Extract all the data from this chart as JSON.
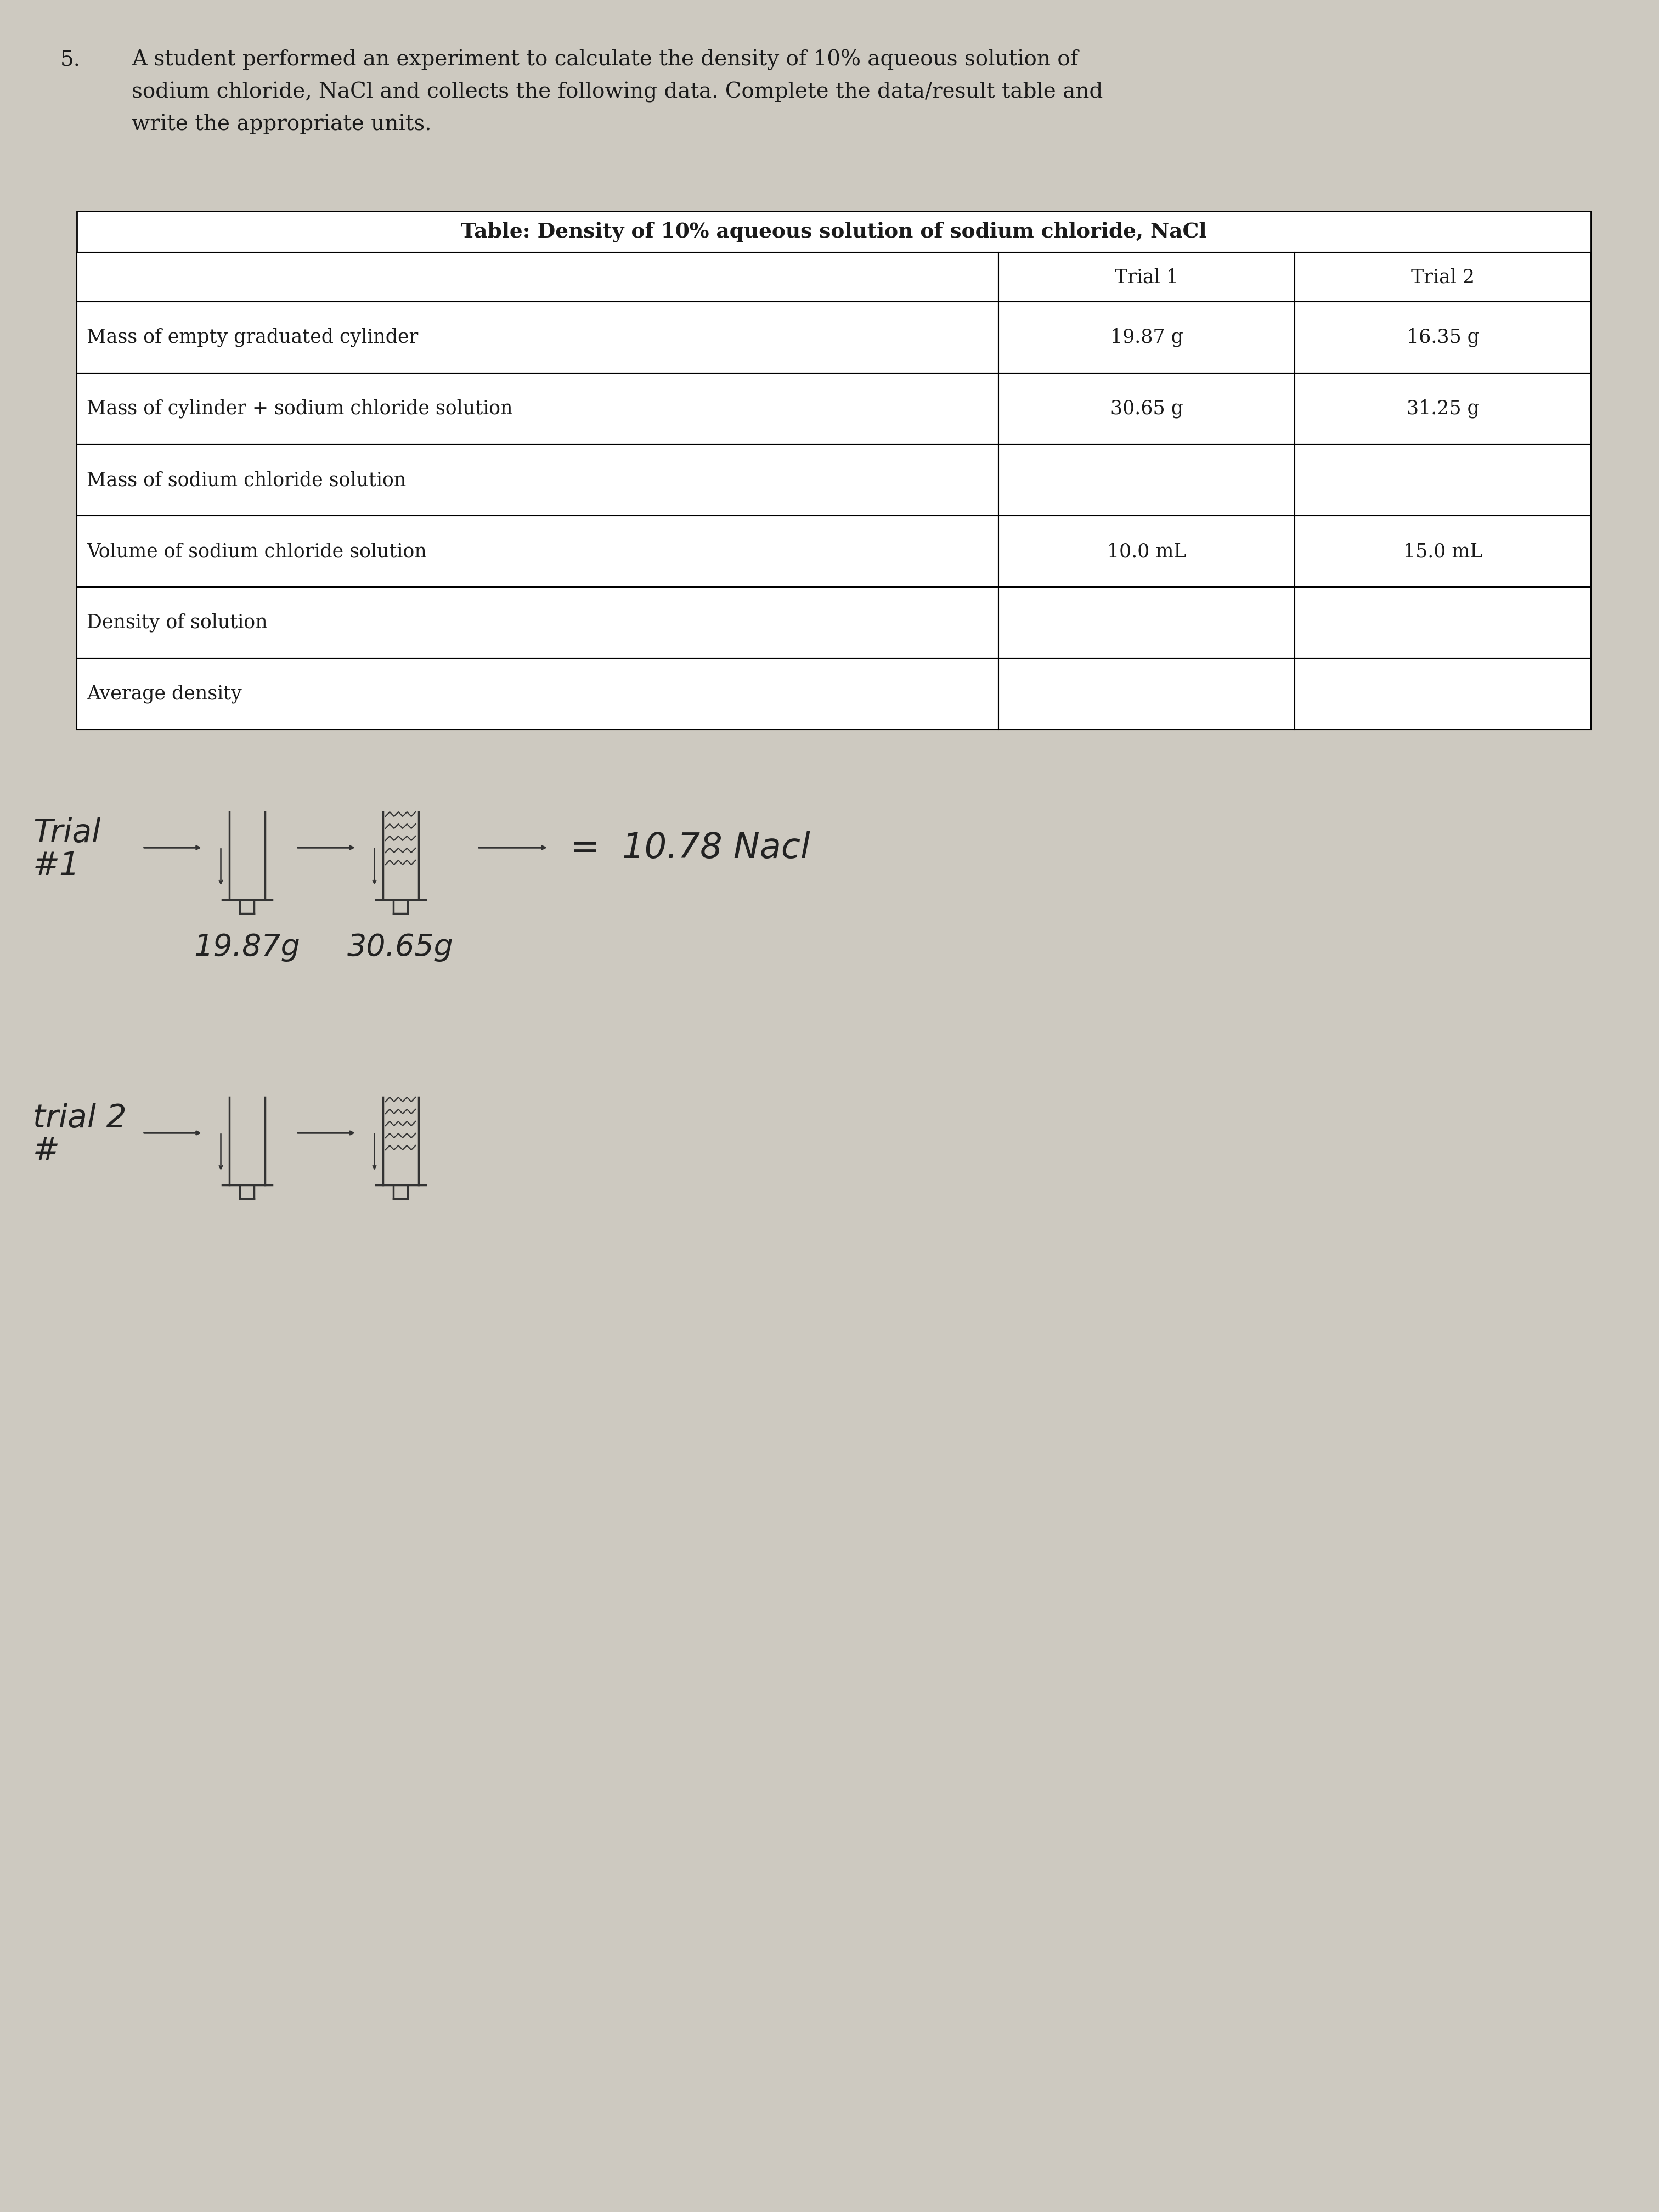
{
  "question_number": "5.",
  "question_text": "A student performed an experiment to calculate the density of 10% aqueous solution of\nsodium chloride, NaCl and collects the following data. Complete the data/result table and\nwrite the appropriate units.",
  "table_title": "Table: Density of 10% aqueous solution of sodium chloride, NaCl",
  "col_headers": [
    "",
    "Trial 1",
    "Trial 2"
  ],
  "row_labels": [
    "Mass of empty graduated cylinder",
    "Mass of cylinder + sodium chloride solution",
    "Mass of sodium chloride solution",
    "Volume of sodium chloride solution",
    "Density of solution",
    "Average density"
  ],
  "trial1_values": [
    "19.87 g",
    "30.65 g",
    "",
    "10.0 mL",
    "",
    ""
  ],
  "trial2_values": [
    "16.35 g",
    "31.25 g",
    "",
    "15.0 mL",
    "",
    ""
  ],
  "bg_color": "#cdc9c0",
  "text_color": "#1a1a1a",
  "font_size_question": 28,
  "font_size_table_title": 27,
  "font_size_table": 25,
  "font_size_handwriting": 42
}
